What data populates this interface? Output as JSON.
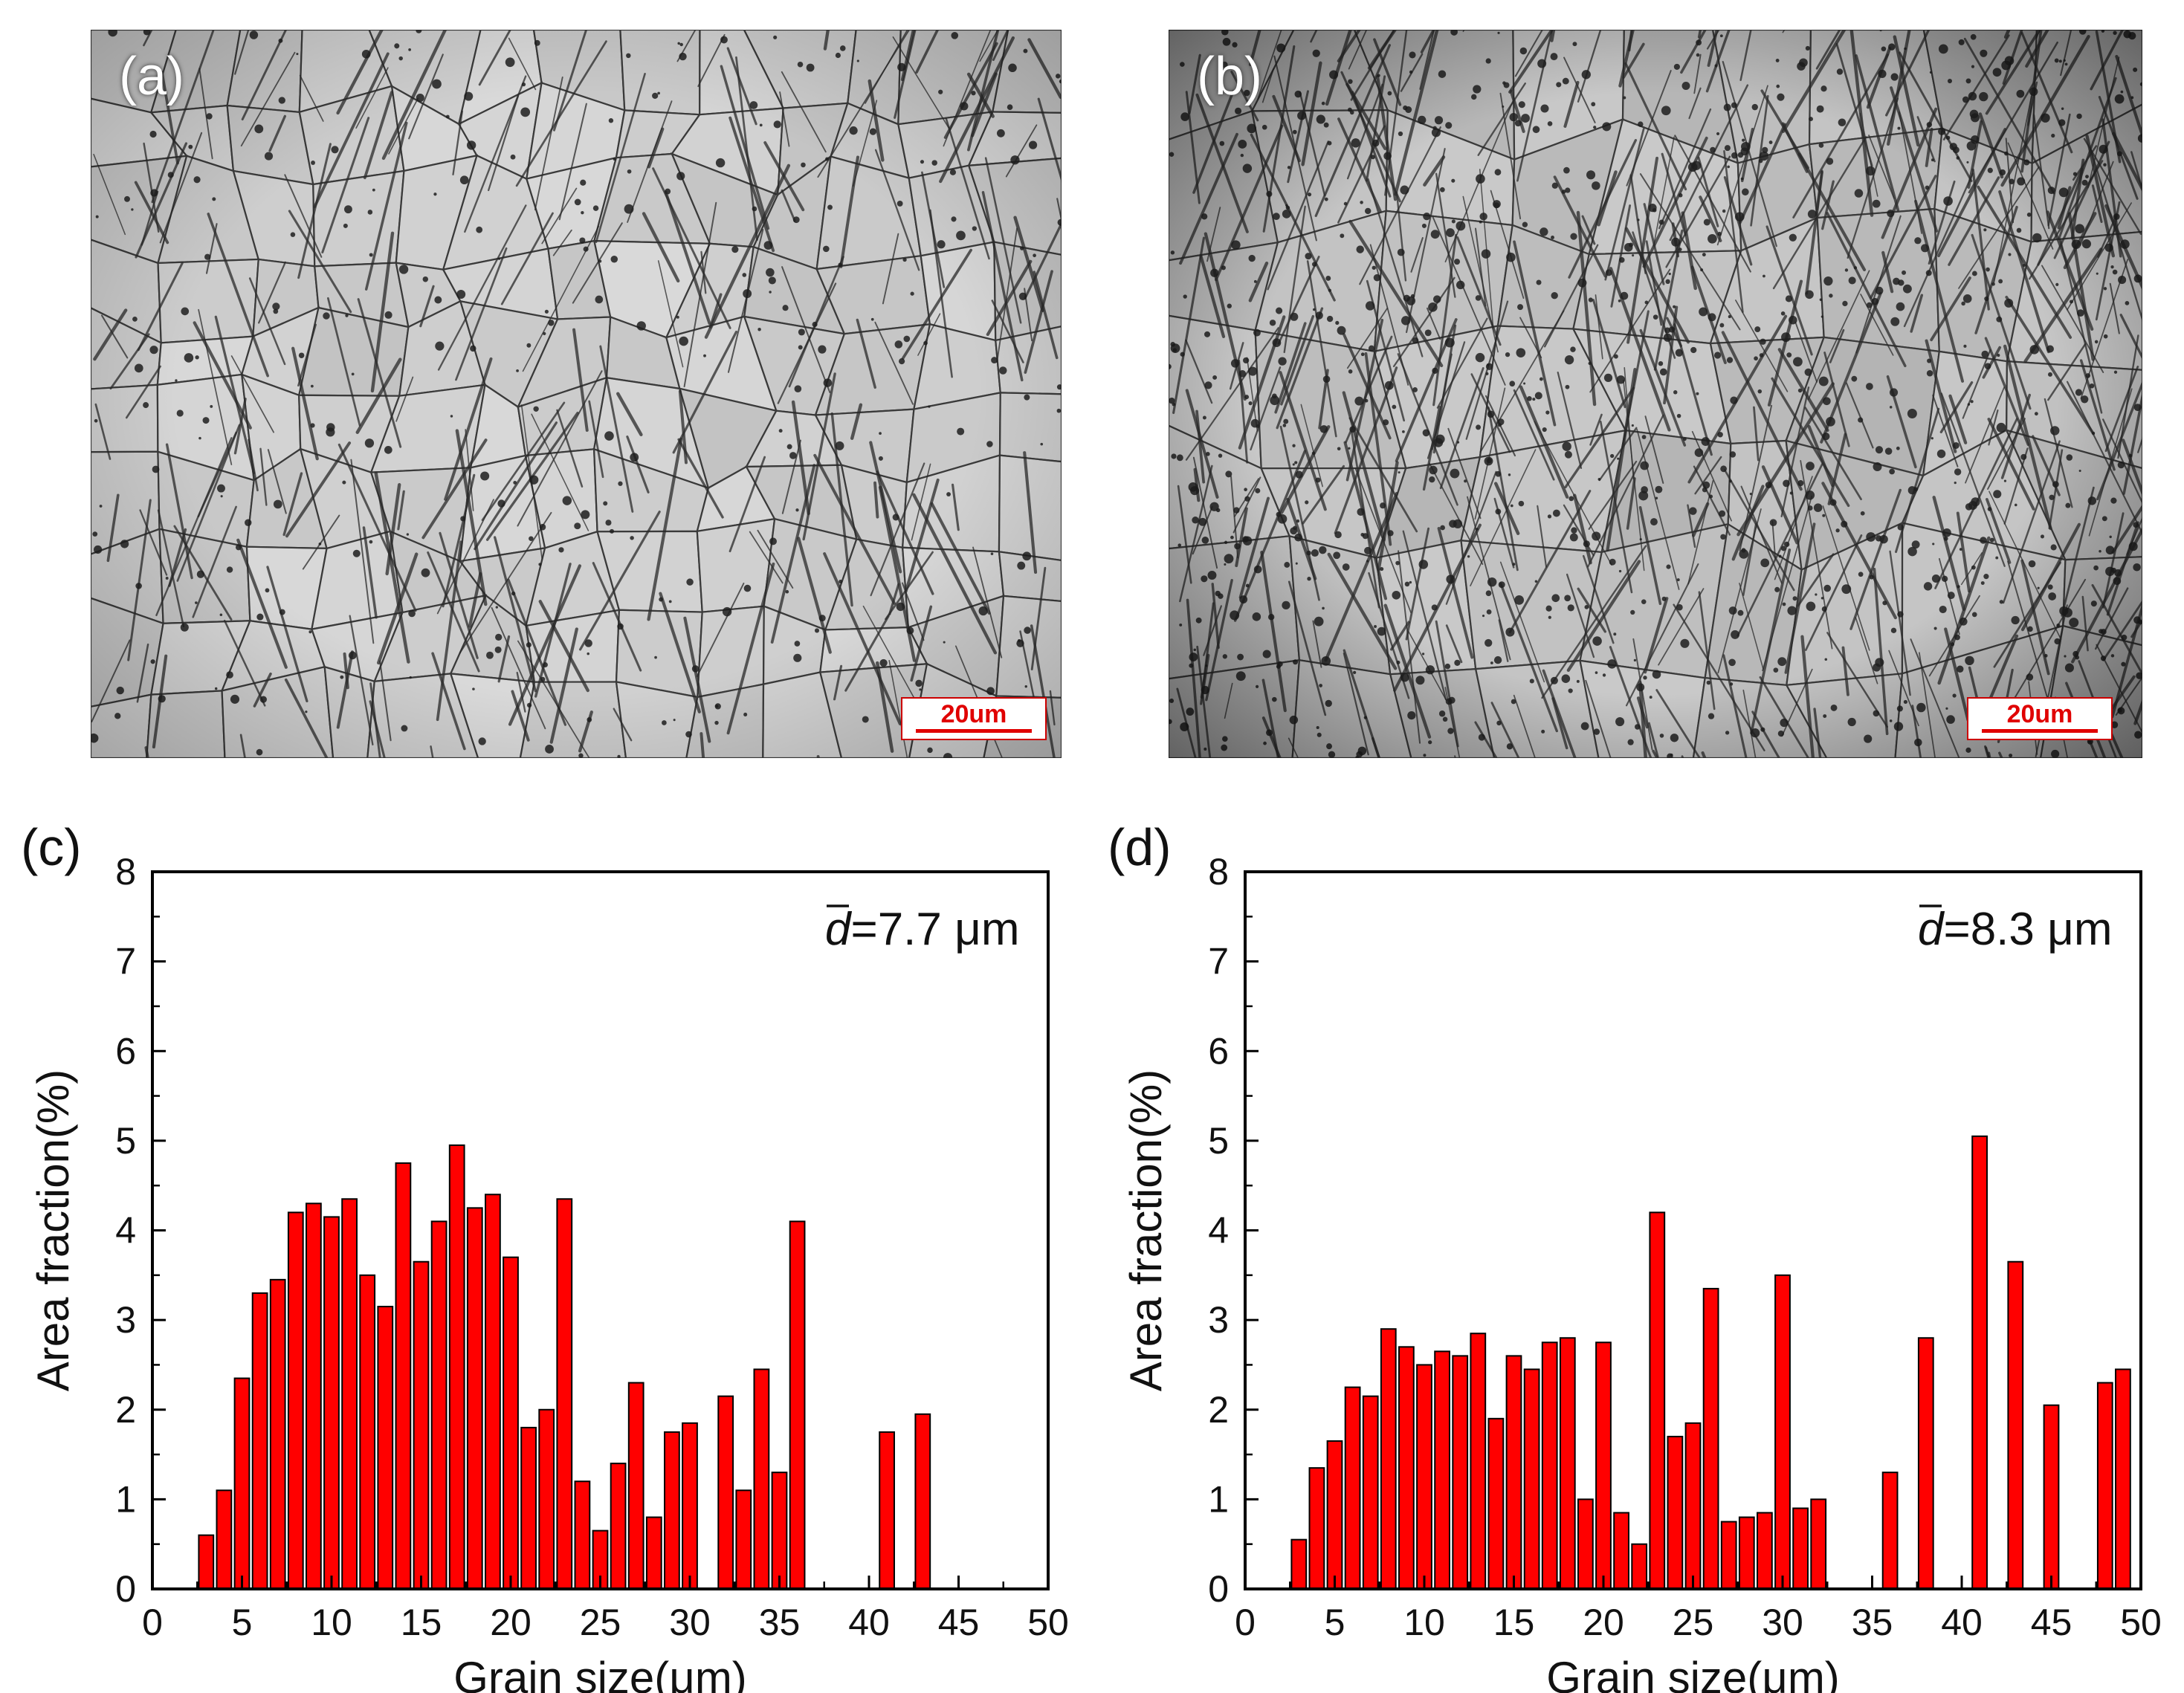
{
  "panels": {
    "a": {
      "label": "(a)",
      "scale_bar": "20um"
    },
    "b": {
      "label": "(b)",
      "scale_bar": "20um"
    }
  },
  "colors": {
    "bar_fill": "#ff0000",
    "bar_stroke": "#000000",
    "scale_red": "#e00000"
  },
  "chart_data": [
    {
      "panel": "(c)",
      "type": "bar",
      "xlabel": "Grain size(μm)",
      "ylabel": "Area fraction(%)",
      "annotation_symbol": "d",
      "annotation_text": "=7.7 μm",
      "xlim": [
        0,
        50
      ],
      "ylim": [
        0,
        8
      ],
      "xticks": [
        "0",
        "5",
        "10",
        "15",
        "20",
        "25",
        "30",
        "35",
        "40",
        "45",
        "50"
      ],
      "yticks": [
        "0",
        "1",
        "2",
        "3",
        "4",
        "5",
        "6",
        "7",
        "8"
      ],
      "x": [
        3,
        4,
        5,
        6,
        7,
        8,
        9,
        10,
        11,
        12,
        13,
        14,
        15,
        16,
        17,
        18,
        19,
        20,
        21,
        22,
        23,
        24,
        25,
        26,
        27,
        28,
        29,
        30,
        31,
        32,
        33,
        34,
        35,
        36,
        37,
        38,
        39,
        40,
        41,
        42,
        43
      ],
      "values": [
        0.6,
        1.1,
        2.35,
        3.3,
        3.45,
        4.2,
        4.3,
        4.15,
        4.35,
        3.5,
        3.15,
        4.75,
        3.65,
        4.1,
        4.95,
        4.25,
        4.4,
        3.7,
        1.8,
        2.0,
        4.35,
        1.2,
        0.65,
        1.4,
        2.3,
        0.8,
        1.75,
        1.85,
        0,
        2.15,
        1.1,
        2.45,
        1.3,
        4.1,
        0,
        0,
        0,
        0,
        1.75,
        0,
        1.95
      ]
    },
    {
      "panel": "(d)",
      "type": "bar",
      "xlabel": "Grain size(μm)",
      "ylabel": "Area fraction(%)",
      "annotation_symbol": "d",
      "annotation_text": "=8.3 μm",
      "xlim": [
        0,
        50
      ],
      "ylim": [
        0,
        8
      ],
      "xticks": [
        "0",
        "5",
        "10",
        "15",
        "20",
        "25",
        "30",
        "35",
        "40",
        "45",
        "50"
      ],
      "yticks": [
        "0",
        "1",
        "2",
        "3",
        "4",
        "5",
        "6",
        "7",
        "8"
      ],
      "x": [
        3,
        4,
        5,
        6,
        7,
        8,
        9,
        10,
        11,
        12,
        13,
        14,
        15,
        16,
        17,
        18,
        19,
        20,
        21,
        22,
        23,
        24,
        25,
        26,
        27,
        28,
        29,
        30,
        31,
        32,
        33,
        34,
        35,
        36,
        37,
        38,
        39,
        40,
        41,
        42,
        43,
        44,
        45,
        46,
        47,
        48,
        49
      ],
      "values": [
        0.55,
        1.35,
        1.65,
        2.25,
        2.15,
        2.9,
        2.7,
        2.5,
        2.65,
        2.6,
        2.85,
        1.9,
        2.6,
        2.45,
        2.75,
        2.8,
        1.0,
        2.75,
        0.85,
        0.5,
        4.2,
        1.7,
        1.85,
        3.35,
        0.75,
        0.8,
        0.85,
        3.5,
        0.9,
        1.0,
        0,
        0,
        0,
        1.3,
        0,
        2.8,
        0,
        0,
        5.05,
        0,
        3.65,
        0,
        2.05,
        0,
        0,
        2.3,
        2.45
      ]
    }
  ]
}
